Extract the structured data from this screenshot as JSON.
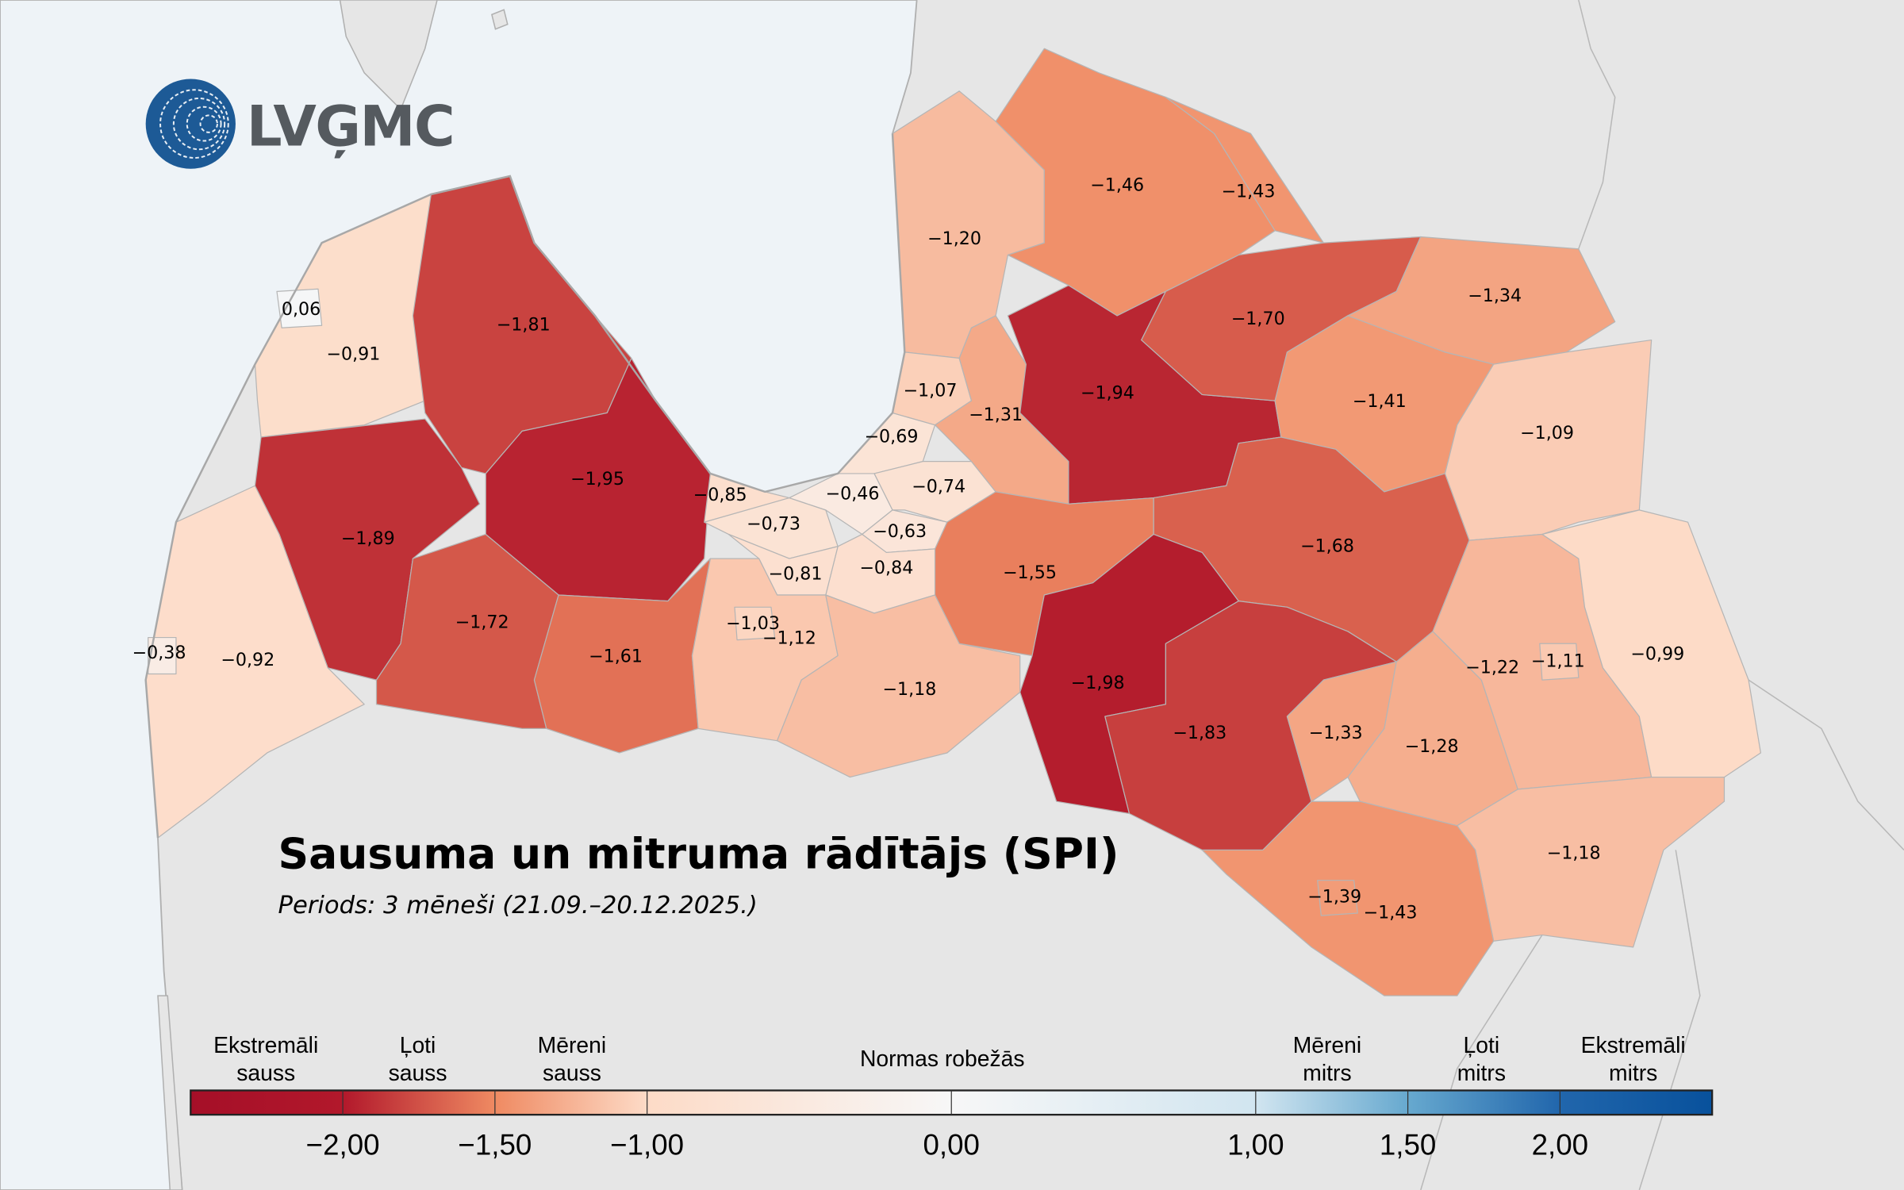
{
  "logo": {
    "text": "LVĢMC",
    "color": "#1d5a96"
  },
  "title": "Sausuma un mitruma rādītājs (SPI)",
  "subtitle": "Periods: 3 mēneši (21.09.–20.12.2025.)",
  "colors": {
    "sea": "#eef3f7",
    "land": "#e6e6e6",
    "border": "#b5b5b5"
  },
  "regions": [
    {
      "label": "0,06",
      "value": 0.06
    },
    {
      "label": "−0,91",
      "value": -0.91
    },
    {
      "label": "−1,81",
      "value": -1.81
    },
    {
      "label": "−1,89",
      "value": -1.89
    },
    {
      "label": "−1,95",
      "value": -1.95
    },
    {
      "label": "−0,38",
      "value": -0.38
    },
    {
      "label": "−0,92",
      "value": -0.92
    },
    {
      "label": "−1,72",
      "value": -1.72
    },
    {
      "label": "−1,61",
      "value": -1.61
    },
    {
      "label": "−0,85",
      "value": -0.85
    },
    {
      "label": "−0,73",
      "value": -0.73
    },
    {
      "label": "−0,46",
      "value": -0.46
    },
    {
      "label": "−0,69",
      "value": -0.69
    },
    {
      "label": "−0,74",
      "value": -0.74
    },
    {
      "label": "−0,63",
      "value": -0.63
    },
    {
      "label": "−0,84",
      "value": -0.84
    },
    {
      "label": "−0,81",
      "value": -0.81
    },
    {
      "label": "−1,03",
      "value": -1.03
    },
    {
      "label": "−1,12",
      "value": -1.12
    },
    {
      "label": "−1,18",
      "value": -1.18
    },
    {
      "label": "−1,07",
      "value": -1.07
    },
    {
      "label": "−1,20",
      "value": -1.2
    },
    {
      "label": "−1,31",
      "value": -1.31
    },
    {
      "label": "−1,46",
      "value": -1.46
    },
    {
      "label": "−1,43",
      "value": -1.43
    },
    {
      "label": "−1,94",
      "value": -1.94
    },
    {
      "label": "−1,70",
      "value": -1.7
    },
    {
      "label": "−1,34",
      "value": -1.34
    },
    {
      "label": "−1,41",
      "value": -1.41
    },
    {
      "label": "−1,09",
      "value": -1.09
    },
    {
      "label": "−1,68",
      "value": -1.68
    },
    {
      "label": "−1,55",
      "value": -1.55
    },
    {
      "label": "−1,98",
      "value": -1.98
    },
    {
      "label": "−1,83",
      "value": -1.83
    },
    {
      "label": "−1,33",
      "value": -1.33
    },
    {
      "label": "−1,28",
      "value": -1.28
    },
    {
      "label": "−1,22",
      "value": -1.22
    },
    {
      "label": "−1,11",
      "value": -1.11
    },
    {
      "label": "−0,99",
      "value": -0.99
    },
    {
      "label": "−1,18",
      "value": -1.18
    },
    {
      "label": "−1,39",
      "value": -1.39
    },
    {
      "label": "−1,43",
      "value": -1.43
    }
  ],
  "legend": {
    "categories": [
      {
        "line1": "Ekstremāli",
        "line2": "sauss"
      },
      {
        "line1": "Ļoti",
        "line2": "sauss"
      },
      {
        "line1": "Mēreni",
        "line2": "sauss"
      },
      {
        "line1": "Normas robežās",
        "line2": ""
      },
      {
        "line1": "Mēreni",
        "line2": "mitrs"
      },
      {
        "line1": "Ļoti",
        "line2": "mitrs"
      },
      {
        "line1": "Ekstremāli",
        "line2": "mitrs"
      }
    ],
    "ticks": [
      "−2,00",
      "−1,50",
      "−1,00",
      "0,00",
      "1,00",
      "1,50",
      "2,00"
    ],
    "tick_values": [
      -2,
      -1.5,
      -1,
      0,
      1,
      1.5,
      2
    ],
    "range": [
      -2.5,
      2.5
    ],
    "color_stops": [
      {
        "v": -2.5,
        "c": "#a50f28"
      },
      {
        "v": -2.0,
        "c": "#b2182b"
      },
      {
        "v": -1.5,
        "c": "#ef8a62"
      },
      {
        "v": -1.0,
        "c": "#fddbc7"
      },
      {
        "v": 0.0,
        "c": "#f7f7f7"
      },
      {
        "v": 1.0,
        "c": "#d1e5f0"
      },
      {
        "v": 1.5,
        "c": "#67a9cf"
      },
      {
        "v": 2.0,
        "c": "#2166ac"
      },
      {
        "v": 2.5,
        "c": "#08519c"
      }
    ]
  }
}
